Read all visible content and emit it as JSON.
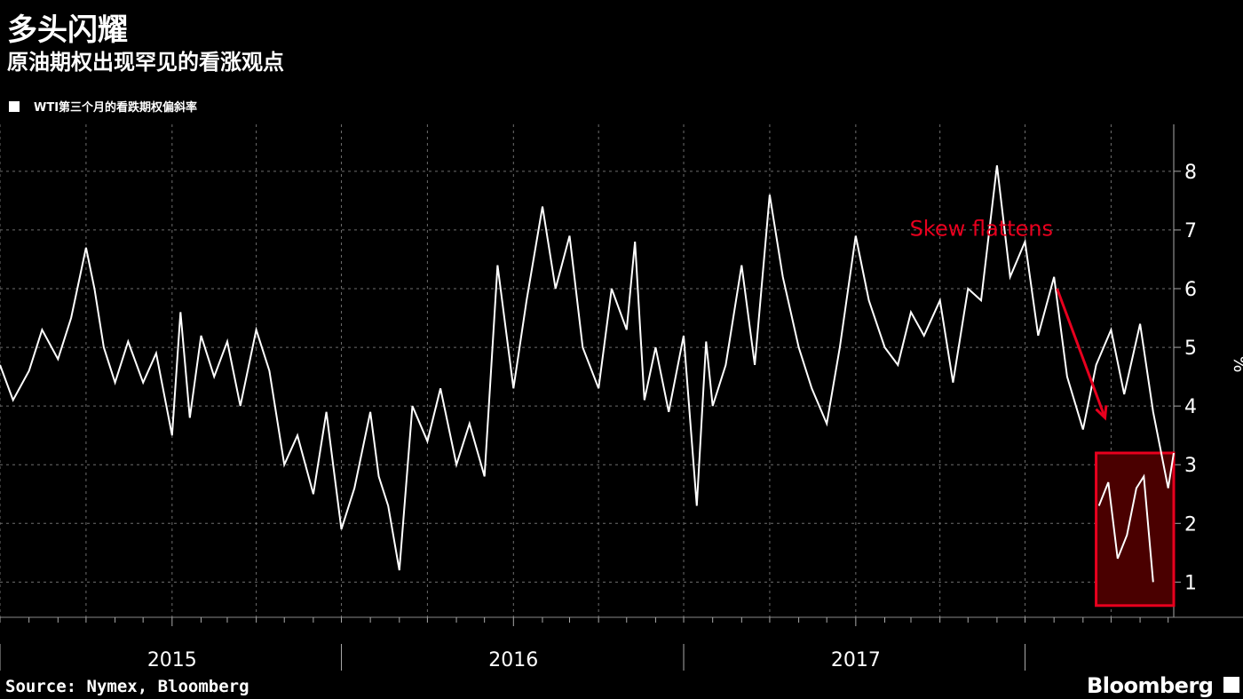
{
  "title": "多头闪耀",
  "subtitle": "原油期权出现罕见的看涨观点",
  "legend": {
    "label": "WTI第三个月的看跌期权偏斜率"
  },
  "source": "Source: Nymex, Bloomberg",
  "brand": "Bloomberg",
  "colors": {
    "background": "#000000",
    "line": "#ffffff",
    "grid": "#6e6e6e",
    "annotation": "#e8001e",
    "highlight_fill": "#4a0000"
  },
  "annotation": {
    "text": "Skew flattens"
  },
  "chart_data": {
    "type": "line",
    "title": "多头闪耀",
    "subtitle": "原油期权出现罕见的看涨观点",
    "ylabel": "%",
    "xlabel": "",
    "ylim": [
      0.4,
      8.8
    ],
    "xlim": [
      "2014-07-01",
      "2017-12-07"
    ],
    "yticks": [
      1,
      2,
      3,
      4,
      5,
      6,
      7,
      8
    ],
    "xtick_labels": [
      "2015",
      "2016",
      "2017"
    ],
    "grid": true,
    "legend_position": "top-left",
    "series": [
      {
        "name": "WTI第三个月的看跌期权偏斜率",
        "points": [
          [
            "2014-07-01",
            4.7
          ],
          [
            "2014-07-15",
            4.1
          ],
          [
            "2014-08-01",
            4.6
          ],
          [
            "2014-08-15",
            5.3
          ],
          [
            "2014-09-01",
            4.8
          ],
          [
            "2014-09-15",
            5.5
          ],
          [
            "2014-10-01",
            6.7
          ],
          [
            "2014-10-10",
            6.0
          ],
          [
            "2014-10-20",
            5.0
          ],
          [
            "2014-11-01",
            4.4
          ],
          [
            "2014-11-15",
            5.1
          ],
          [
            "2014-12-01",
            4.4
          ],
          [
            "2014-12-15",
            4.9
          ],
          [
            "2015-01-01",
            3.5
          ],
          [
            "2015-01-10",
            5.6
          ],
          [
            "2015-01-20",
            3.8
          ],
          [
            "2015-02-01",
            5.2
          ],
          [
            "2015-02-15",
            4.5
          ],
          [
            "2015-03-01",
            5.1
          ],
          [
            "2015-03-15",
            4.0
          ],
          [
            "2015-04-01",
            5.3
          ],
          [
            "2015-04-15",
            4.6
          ],
          [
            "2015-05-01",
            3.0
          ],
          [
            "2015-05-15",
            3.5
          ],
          [
            "2015-06-01",
            2.5
          ],
          [
            "2015-06-15",
            3.9
          ],
          [
            "2015-07-01",
            1.9
          ],
          [
            "2015-07-15",
            2.6
          ],
          [
            "2015-08-01",
            3.9
          ],
          [
            "2015-08-10",
            2.8
          ],
          [
            "2015-08-20",
            2.3
          ],
          [
            "2015-09-01",
            1.2
          ],
          [
            "2015-09-15",
            4.0
          ],
          [
            "2015-10-01",
            3.4
          ],
          [
            "2015-10-15",
            4.3
          ],
          [
            "2015-11-01",
            3.0
          ],
          [
            "2015-11-15",
            3.7
          ],
          [
            "2015-12-01",
            2.8
          ],
          [
            "2015-12-15",
            6.4
          ],
          [
            "2016-01-01",
            4.3
          ],
          [
            "2016-01-15",
            5.8
          ],
          [
            "2016-02-01",
            7.4
          ],
          [
            "2016-02-15",
            6.0
          ],
          [
            "2016-03-01",
            6.9
          ],
          [
            "2016-03-15",
            5.0
          ],
          [
            "2016-04-01",
            4.3
          ],
          [
            "2016-04-15",
            6.0
          ],
          [
            "2016-05-01",
            5.3
          ],
          [
            "2016-05-10",
            6.8
          ],
          [
            "2016-05-20",
            4.1
          ],
          [
            "2016-06-01",
            5.0
          ],
          [
            "2016-06-15",
            3.9
          ],
          [
            "2016-07-01",
            5.2
          ],
          [
            "2016-07-15",
            2.3
          ],
          [
            "2016-07-25",
            5.1
          ],
          [
            "2016-08-01",
            4.0
          ],
          [
            "2016-08-15",
            4.7
          ],
          [
            "2016-09-01",
            6.4
          ],
          [
            "2016-09-15",
            4.7
          ],
          [
            "2016-10-01",
            7.6
          ],
          [
            "2016-10-15",
            6.2
          ],
          [
            "2016-11-01",
            5.0
          ],
          [
            "2016-11-15",
            4.3
          ],
          [
            "2016-12-01",
            3.7
          ],
          [
            "2016-12-15",
            5.0
          ],
          [
            "2017-01-01",
            6.9
          ],
          [
            "2017-01-15",
            5.8
          ],
          [
            "2017-02-01",
            5.0
          ],
          [
            "2017-02-15",
            4.7
          ],
          [
            "2017-03-01",
            5.6
          ],
          [
            "2017-03-15",
            5.2
          ],
          [
            "2017-04-01",
            5.8
          ],
          [
            "2017-04-15",
            4.4
          ],
          [
            "2017-05-01",
            6.0
          ],
          [
            "2017-05-15",
            5.8
          ],
          [
            "2017-06-01",
            8.1
          ],
          [
            "2017-06-15",
            6.2
          ],
          [
            "2017-07-01",
            6.8
          ],
          [
            "2017-07-15",
            5.2
          ],
          [
            "2017-08-01",
            6.2
          ],
          [
            "2017-08-15",
            4.5
          ],
          [
            "2017-09-01",
            3.6
          ],
          [
            "2017-09-15",
            4.7
          ],
          [
            "2017-10-01",
            5.3
          ],
          [
            "2017-10-15",
            4.2
          ],
          [
            "2017-11-01",
            5.4
          ],
          [
            "2017-11-15",
            3.9
          ],
          [
            "2017-12-01",
            2.6
          ],
          [
            "2017-12-07",
            3.2
          ]
        ]
      }
    ],
    "highlight": {
      "label": "Skew flattens",
      "x_range": [
        "2017-09-15",
        "2017-12-07"
      ],
      "y_range": [
        0.6,
        3.2
      ],
      "points": [
        [
          "2017-09-18",
          2.3
        ],
        [
          "2017-09-28",
          2.7
        ],
        [
          "2017-10-08",
          1.4
        ],
        [
          "2017-10-18",
          1.8
        ],
        [
          "2017-10-28",
          2.6
        ],
        [
          "2017-11-05",
          2.8
        ],
        [
          "2017-11-15",
          1.0
        ]
      ]
    }
  }
}
